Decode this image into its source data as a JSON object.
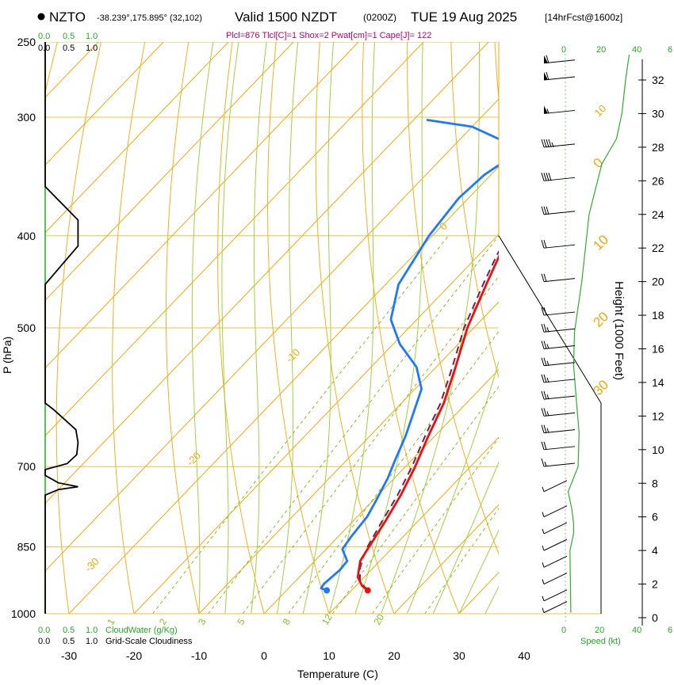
{
  "header": {
    "station": "NZTO",
    "coords": "-38.239°,175.895° (32,102)",
    "valid": "Valid 1500 NZDT",
    "utc": "(0200Z)",
    "date": "TUE 19 Aug 2025",
    "forecast": "[14hrFcst@1600z]",
    "params": "Plcl=876 Tlcl[C]=1 Shox=2 Pwat[cm]=1 Cape[J]= 122"
  },
  "chart_data": {
    "type": "skew-t",
    "title": "NZTO Valid 1500 NZDT TUE 19 Aug 2025",
    "xlabel": "Temperature (C)",
    "ylabel": "P (hPa)",
    "right_label": "Height (1000 Feet)",
    "speed_label": "Speed (kt)",
    "cloud_label": "CloudWater (g/Kg)",
    "cloudiness_label": "Grid-Scale Cloudiness",
    "x_ticks": [
      "-30",
      "-20",
      "-10",
      "0",
      "10",
      "20",
      "30",
      "40"
    ],
    "x_tick_values": [
      -30,
      -20,
      -10,
      0,
      10,
      20,
      30,
      40
    ],
    "p_ticks": [
      "250",
      "300",
      "400",
      "500",
      "700",
      "850",
      "1000"
    ],
    "p_tick_values": [
      250,
      300,
      400,
      500,
      700,
      850,
      1000
    ],
    "height_ticks": [
      "0",
      "2",
      "4",
      "6",
      "8",
      "10",
      "12",
      "14",
      "16",
      "18",
      "20",
      "22",
      "24",
      "26",
      "28",
      "30",
      "32"
    ],
    "height_tick_values": [
      0,
      2,
      4,
      6,
      8,
      10,
      12,
      14,
      16,
      18,
      20,
      22,
      24,
      26,
      28,
      30,
      32
    ],
    "cloud_ticks_top": [
      "0.0",
      "0.5",
      "1.0"
    ],
    "cloud_ticks_bottom": [
      "0.0",
      "0.5",
      "1.0"
    ],
    "speed_ticks": [
      "0",
      "20",
      "40",
      "6"
    ],
    "isotherm_labels": [
      {
        "text": "10",
        "t": -10,
        "p": 300
      },
      {
        "text": "0",
        "t": -29,
        "p": 395
      },
      {
        "text": "-10",
        "t": -33,
        "p": 545
      },
      {
        "text": "-20",
        "t": -33,
        "p": 700
      },
      {
        "text": "-30",
        "t": -33,
        "p": 905
      },
      {
        "text": "0",
        "t": 36,
        "p": 340
      },
      {
        "text": "10",
        "t": 39,
        "p": 415
      },
      {
        "text": "20",
        "t": 44,
        "p": 500
      },
      {
        "text": "30",
        "t": 47,
        "p": 590
      }
    ],
    "mixing_labels": [
      {
        "text": "1",
        "t": -16,
        "p": 1000
      },
      {
        "text": "2",
        "t": -8,
        "p": 1000
      },
      {
        "text": "3",
        "t": -2,
        "p": 1000
      },
      {
        "text": "5",
        "t": 4,
        "p": 1000
      },
      {
        "text": "8",
        "t": 11,
        "p": 1000
      },
      {
        "text": "12",
        "t": 17,
        "p": 995
      },
      {
        "text": "20",
        "t": 25,
        "p": 995
      }
    ],
    "temperature": {
      "name": "Temperature",
      "color": "#e81010",
      "points": [
        [
          12.5,
          945
        ],
        [
          11,
          935
        ],
        [
          9,
          915
        ],
        [
          7,
          880
        ],
        [
          6.5,
          860
        ],
        [
          6,
          840
        ],
        [
          5,
          800
        ],
        [
          3.5,
          750
        ],
        [
          1.5,
          700
        ],
        [
          -1,
          650
        ],
        [
          -3.5,
          600
        ],
        [
          -7,
          550
        ],
        [
          -11,
          500
        ],
        [
          -14.5,
          450
        ],
        [
          -17.5,
          410
        ],
        [
          -19,
          390
        ],
        [
          -19.5,
          370
        ],
        [
          -18.5,
          350
        ],
        [
          -17,
          335
        ],
        [
          -14.5,
          320
        ],
        [
          -11,
          300
        ],
        [
          -8,
          285
        ],
        [
          -4,
          270
        ],
        [
          0,
          258
        ],
        [
          2.5,
          252
        ]
      ]
    },
    "dewpoint": {
      "name": "Dewpoint",
      "color": "#1e78ff",
      "points": [
        [
          6.2,
          945
        ],
        [
          5,
          940
        ],
        [
          4.8,
          930
        ],
        [
          5.2,
          900
        ],
        [
          5,
          880
        ],
        [
          3.5,
          865
        ],
        [
          2.5,
          855
        ],
        [
          2,
          830
        ],
        [
          1.5,
          790
        ],
        [
          0.5,
          760
        ],
        [
          -1,
          720
        ],
        [
          -2.5,
          690
        ],
        [
          -4.5,
          650
        ],
        [
          -7,
          610
        ],
        [
          -9,
          580
        ],
        [
          -13,
          550
        ],
        [
          -19,
          520
        ],
        [
          -24,
          490
        ],
        [
          -28,
          450
        ],
        [
          -30.5,
          400
        ],
        [
          -31.5,
          365
        ],
        [
          -31,
          345
        ],
        [
          -30,
          335
        ],
        [
          -33,
          318
        ],
        [
          -40,
          307
        ],
        [
          -48,
          302
        ]
      ]
    },
    "parcel": {
      "name": "Parcel",
      "color": "#7a1e4a",
      "points": [
        [
          12.5,
          945
        ],
        [
          10,
          925
        ],
        [
          8,
          895
        ],
        [
          6.8,
          870
        ],
        [
          6,
          850
        ],
        [
          4.5,
          800
        ],
        [
          3,
          750
        ],
        [
          1,
          700
        ],
        [
          -1.5,
          650
        ],
        [
          -4,
          600
        ],
        [
          -7.5,
          550
        ],
        [
          -11.5,
          500
        ],
        [
          -15,
          450
        ],
        [
          -17.5,
          415
        ]
      ]
    },
    "cloudiness": {
      "name": "Grid-Scale Cloudiness",
      "color": "#000000",
      "points": [
        [
          0.0,
          1000
        ],
        [
          0.0,
          750
        ],
        [
          0.3,
          740
        ],
        [
          0.75,
          735
        ],
        [
          0.3,
          728
        ],
        [
          0.0,
          715
        ],
        [
          0.0,
          705
        ],
        [
          0.5,
          695
        ],
        [
          0.72,
          680
        ],
        [
          0.75,
          660
        ],
        [
          0.7,
          640
        ],
        [
          0.2,
          610
        ],
        [
          0.0,
          600
        ],
        [
          0.0,
          450
        ],
        [
          0.75,
          410
        ],
        [
          0.75,
          385
        ],
        [
          0.0,
          355
        ],
        [
          0.0,
          250
        ]
      ]
    },
    "height_profile": {
      "name": "Speed",
      "points": [
        [
          3,
          0.3
        ],
        [
          2.8,
          2
        ],
        [
          2.5,
          4
        ],
        [
          4.5,
          5
        ],
        [
          4.5,
          5.6
        ],
        [
          3.5,
          6.5
        ],
        [
          1.5,
          7.5
        ],
        [
          7,
          9
        ],
        [
          7.5,
          11
        ],
        [
          6,
          13
        ],
        [
          4.5,
          15
        ],
        [
          5,
          17
        ],
        [
          9,
          20
        ],
        [
          11,
          22
        ],
        [
          13,
          24
        ],
        [
          20,
          27
        ],
        [
          28,
          28.5
        ],
        [
          31,
          30
        ],
        [
          33,
          32
        ],
        [
          35,
          33.5
        ]
      ]
    },
    "wind_barbs": [
      {
        "h": 0.3,
        "speed": 5
      },
      {
        "h": 1,
        "speed": 5
      },
      {
        "h": 2,
        "speed": 5
      },
      {
        "h": 3,
        "speed": 5
      },
      {
        "h": 4,
        "speed": 5
      },
      {
        "h": 5,
        "speed": 5
      },
      {
        "h": 6,
        "speed": 5
      },
      {
        "h": 7.5,
        "speed": 5
      },
      {
        "h": 9,
        "speed": 15
      },
      {
        "h": 10,
        "speed": 20
      },
      {
        "h": 11,
        "speed": 25
      },
      {
        "h": 12,
        "speed": 25
      },
      {
        "h": 13,
        "speed": 25
      },
      {
        "h": 14,
        "speed": 25
      },
      {
        "h": 15,
        "speed": 25
      },
      {
        "h": 16,
        "speed": 25
      },
      {
        "h": 17,
        "speed": 25
      },
      {
        "h": 18,
        "speed": 20
      },
      {
        "h": 20,
        "speed": 20
      },
      {
        "h": 22,
        "speed": 20
      },
      {
        "h": 24,
        "speed": 30
      },
      {
        "h": 26,
        "speed": 40
      },
      {
        "h": 28,
        "speed": 45
      },
      {
        "h": 30,
        "speed": 55
      },
      {
        "h": 32,
        "speed": 60
      },
      {
        "h": 33,
        "speed": 60
      }
    ],
    "colors": {
      "isotherm": "#f0a800",
      "isobar": "#f0c040",
      "dry_adiabat": "#f0b020",
      "moist_adiabat": "#a0d040",
      "mixing_ratio": "#80c020",
      "green_text": "#22aa22"
    }
  }
}
